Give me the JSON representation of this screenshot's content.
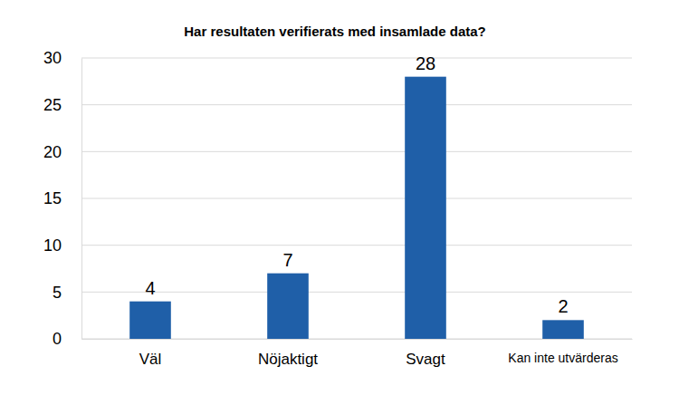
{
  "chart_data": {
    "type": "bar",
    "title": "Har resultaten verifierats med insamlade data?",
    "categories": [
      "Väl",
      "Nöjaktigt",
      "Svagt",
      "Kan inte utvärderas"
    ],
    "values": [
      4,
      7,
      28,
      2
    ],
    "color": "#1f5fa8",
    "ylim": [
      0,
      30
    ],
    "yticks": [
      0,
      5,
      10,
      15,
      20,
      25,
      30
    ],
    "grid": true,
    "data_labels": true
  }
}
